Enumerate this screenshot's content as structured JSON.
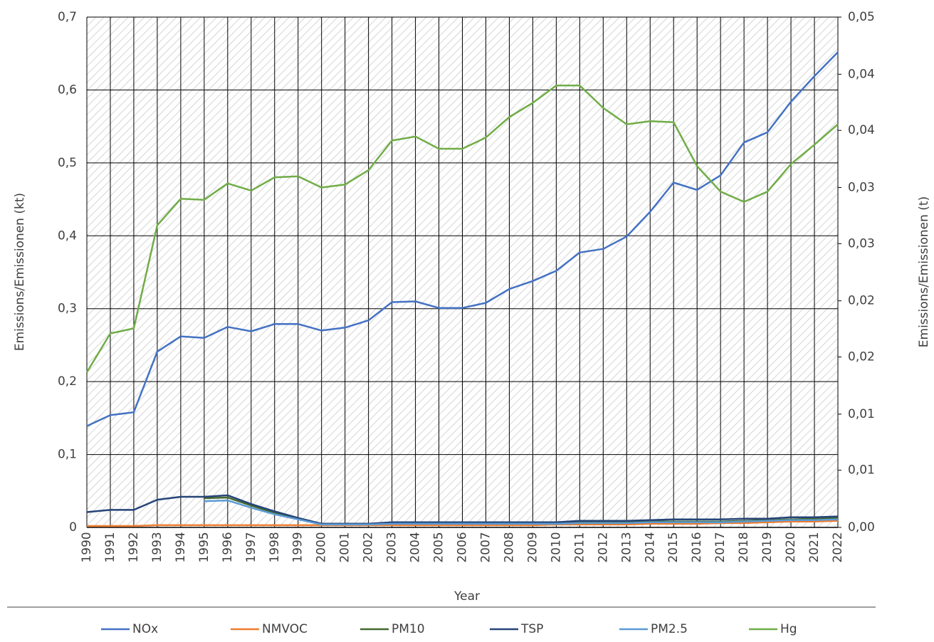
{
  "chart_data": {
    "type": "line",
    "x_label": "Year",
    "y_label": "Emissions/Emissionen (kt)",
    "y2_label": "Emissions/Emissionen (t)",
    "categories": [
      "1990",
      "1991",
      "1992",
      "1993",
      "1994",
      "1995",
      "1996",
      "1997",
      "1998",
      "1999",
      "2000",
      "2001",
      "2002",
      "2003",
      "2004",
      "2005",
      "2006",
      "2007",
      "2008",
      "2009",
      "2010",
      "2011",
      "2012",
      "2013",
      "2014",
      "2015",
      "2016",
      "2017",
      "2018",
      "2019",
      "2020",
      "2021",
      "2022"
    ],
    "ylim": [
      0,
      0.7
    ],
    "yticks": [
      0,
      {
        "value": 0.1,
        "label": "0,1"
      },
      {
        "value": 0.2,
        "label": "0,2"
      },
      {
        "value": 0.3,
        "label": "0,3"
      },
      {
        "value": 0.4,
        "label": "0,4"
      },
      {
        "value": 0.5,
        "label": "0,5"
      },
      {
        "value": 0.6,
        "label": "0,6"
      },
      {
        "value": 0.7,
        "label": "0,7"
      }
    ],
    "y2lim": [
      0,
      0.05
    ],
    "y2ticks": [
      {
        "value": 0,
        "label": "0,00"
      },
      {
        "value": 0.0056,
        "label": "0,01"
      },
      {
        "value": 0.0111,
        "label": "0,01"
      },
      {
        "value": 0.0167,
        "label": "0,02"
      },
      {
        "value": 0.0222,
        "label": "0,02"
      },
      {
        "value": 0.0278,
        "label": "0,03"
      },
      {
        "value": 0.0333,
        "label": "0,03"
      },
      {
        "value": 0.0389,
        "label": "0,04"
      },
      {
        "value": 0.0444,
        "label": "0,04"
      },
      {
        "value": 0.05,
        "label": "0,05"
      }
    ],
    "grid": true,
    "legend": "bottom",
    "series": [
      {
        "name": "NOx",
        "color": "#4472c4",
        "values": [
          0.139,
          0.154,
          0.158,
          0.241,
          0.262,
          0.26,
          0.275,
          0.269,
          0.279,
          0.279,
          0.27,
          0.274,
          0.284,
          0.309,
          0.31,
          0.301,
          0.301,
          0.308,
          0.327,
          0.338,
          0.352,
          0.377,
          0.382,
          0.399,
          0.433,
          0.473,
          0.463,
          0.483,
          0.528,
          0.542,
          0.584,
          0.619,
          0.652
        ]
      },
      {
        "name": "NMVOC",
        "color": "#ed7d31",
        "values": [
          0.002,
          0.002,
          0.002,
          0.003,
          0.003,
          0.003,
          0.003,
          0.003,
          0.003,
          0.003,
          0.003,
          0.003,
          0.003,
          0.003,
          0.003,
          0.003,
          0.003,
          0.003,
          0.003,
          0.003,
          0.004,
          0.004,
          0.004,
          0.004,
          0.005,
          0.005,
          0.005,
          0.006,
          0.006,
          0.007,
          0.008,
          0.008,
          0.009
        ]
      },
      {
        "name": "PM10",
        "color": "#43682b",
        "values": [
          null,
          null,
          null,
          null,
          null,
          0.04,
          0.041,
          0.03,
          0.02,
          0.012,
          0.005,
          0.005,
          0.005,
          0.006,
          0.006,
          0.006,
          0.006,
          0.006,
          0.006,
          0.006,
          0.006,
          0.007,
          0.007,
          0.007,
          0.008,
          0.008,
          0.008,
          0.008,
          0.009,
          0.01,
          0.011,
          0.012,
          0.013
        ]
      },
      {
        "name": "TSP",
        "color": "#264478",
        "values": [
          0.021,
          0.024,
          0.024,
          0.038,
          0.042,
          0.042,
          0.044,
          0.032,
          0.022,
          0.013,
          0.005,
          0.005,
          0.005,
          0.007,
          0.007,
          0.007,
          0.007,
          0.007,
          0.007,
          0.007,
          0.007,
          0.009,
          0.009,
          0.009,
          0.01,
          0.011,
          0.011,
          0.011,
          0.012,
          0.012,
          0.014,
          0.014,
          0.015
        ]
      },
      {
        "name": "PM2.5",
        "color": "#5b9bd5",
        "values": [
          null,
          null,
          null,
          null,
          null,
          0.036,
          0.037,
          0.027,
          0.018,
          0.011,
          0.004,
          0.004,
          0.004,
          0.005,
          0.005,
          0.005,
          0.005,
          0.005,
          0.005,
          0.005,
          0.005,
          0.006,
          0.006,
          0.006,
          0.007,
          0.007,
          0.007,
          0.007,
          0.008,
          0.009,
          0.01,
          0.01,
          0.011
        ]
      },
      {
        "name": "Hg",
        "color": "#70ad47",
        "axis": "y2",
        "values": [
          0.0152,
          0.019,
          0.0195,
          0.0296,
          0.0322,
          0.0321,
          0.0337,
          0.033,
          0.0343,
          0.0344,
          0.0333,
          0.0336,
          0.035,
          0.0379,
          0.0383,
          0.0371,
          0.0371,
          0.0382,
          0.0402,
          0.0416,
          0.0433,
          0.0433,
          0.0411,
          0.0395,
          0.0398,
          0.0397,
          0.0354,
          0.0329,
          0.0319,
          0.0329,
          0.0356,
          0.0375,
          0.0395
        ]
      }
    ]
  }
}
